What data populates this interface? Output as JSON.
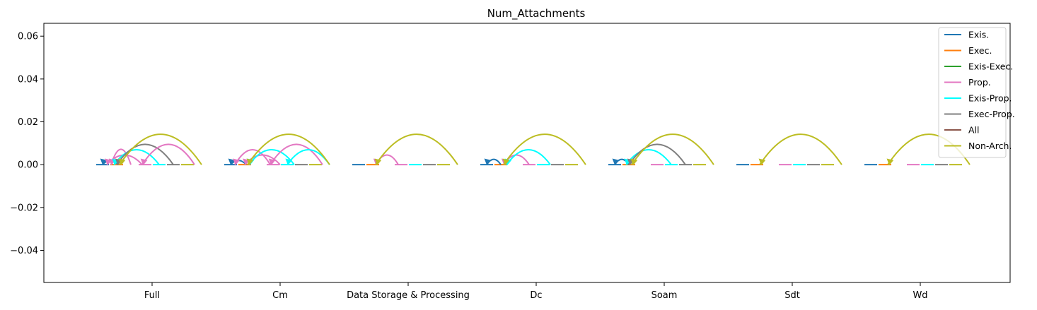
{
  "chart_data": {
    "type": "line",
    "title": "Num_Attachments",
    "xlabel": "",
    "ylabel": "",
    "categories": [
      "Full",
      "Cm",
      "Data Storage & Processing",
      "Dc",
      "Soam",
      "Sdt",
      "Wd"
    ],
    "ylim": [
      -0.055,
      0.066
    ],
    "yticks": [
      -0.04,
      -0.02,
      0.0,
      0.02,
      0.04,
      0.06
    ],
    "ytick_labels": [
      "−0.04",
      "−0.02",
      "0.00",
      "0.02",
      "0.04",
      "0.06"
    ],
    "grid": false,
    "legend_position": "top-right",
    "series": [
      {
        "name": "Exis.",
        "color": "#1f77b4"
      },
      {
        "name": "Exec.",
        "color": "#ff7f0e"
      },
      {
        "name": "Exis-Exec.",
        "color": "#2ca02c"
      },
      {
        "name": "Prop.",
        "color": "#e377c2"
      },
      {
        "name": "Exis-Prop.",
        "color": "#00ffff"
      },
      {
        "name": "Exec-Prop.",
        "color": "#7f7f7f"
      },
      {
        "name": "All",
        "color": "#8c564b"
      },
      {
        "name": "Non-Arch.",
        "color": "#bcbd22"
      }
    ],
    "segments": [
      {
        "series": [
          0,
          1,
          3,
          4,
          5,
          7
        ],
        "y": 0.0
      }
    ],
    "arcs": [
      {
        "category": 0,
        "series": 0,
        "from": 0.0,
        "to": 1.1,
        "height": 0.002
      },
      {
        "category": 0,
        "series": 3,
        "from": 0.6,
        "to": 2.0,
        "height": 0.0072
      },
      {
        "category": 0,
        "series": 3,
        "from": 0.3,
        "to": 2.8,
        "height": 0.0045
      },
      {
        "category": 0,
        "series": 4,
        "from": 0.8,
        "to": 4.0,
        "height": 0.007
      },
      {
        "category": 0,
        "series": 5,
        "from": 1.0,
        "to": 5.0,
        "height": 0.0095
      },
      {
        "category": 0,
        "series": 3,
        "from": 2.8,
        "to": 6.5,
        "height": 0.0095
      },
      {
        "category": 0,
        "series": 7,
        "from": 1.2,
        "to": 7.0,
        "height": 0.0142
      },
      {
        "category": 1,
        "series": 0,
        "from": 0.0,
        "to": 1.1,
        "height": 0.002
      },
      {
        "category": 1,
        "series": 3,
        "from": 0.3,
        "to": 2.8,
        "height": 0.007
      },
      {
        "category": 1,
        "series": 3,
        "from": 1.0,
        "to": 3.5,
        "height": 0.0045
      },
      {
        "category": 1,
        "series": 4,
        "from": 1.3,
        "to": 4.5,
        "height": 0.007
      },
      {
        "category": 1,
        "series": 3,
        "from": 2.8,
        "to": 6.5,
        "height": 0.0095
      },
      {
        "category": 1,
        "series": 4,
        "from": 4.0,
        "to": 7.0,
        "height": 0.007
      },
      {
        "category": 1,
        "series": 7,
        "from": 1.2,
        "to": 7.0,
        "height": 0.0142
      },
      {
        "category": 2,
        "series": 3,
        "from": 1.2,
        "to": 2.8,
        "height": 0.0045
      },
      {
        "category": 2,
        "series": 7,
        "from": 1.2,
        "to": 7.0,
        "height": 0.0142
      },
      {
        "category": 3,
        "series": 0,
        "from": 0.0,
        "to": 1.0,
        "height": 0.0025
      },
      {
        "category": 3,
        "series": 3,
        "from": 1.2,
        "to": 3.0,
        "height": 0.0045
      },
      {
        "category": 3,
        "series": 4,
        "from": 1.4,
        "to": 4.5,
        "height": 0.007
      },
      {
        "category": 3,
        "series": 7,
        "from": 1.2,
        "to": 7.0,
        "height": 0.0142
      },
      {
        "category": 4,
        "series": 0,
        "from": 0.0,
        "to": 1.0,
        "height": 0.0025
      },
      {
        "category": 4,
        "series": 4,
        "from": 0.8,
        "to": 4.0,
        "height": 0.007
      },
      {
        "category": 4,
        "series": 5,
        "from": 1.0,
        "to": 5.0,
        "height": 0.0095
      },
      {
        "category": 4,
        "series": 7,
        "from": 1.2,
        "to": 7.0,
        "height": 0.0142
      },
      {
        "category": 5,
        "series": 7,
        "from": 1.2,
        "to": 7.0,
        "height": 0.0142
      },
      {
        "category": 6,
        "series": 7,
        "from": 1.2,
        "to": 7.0,
        "height": 0.0142
      }
    ]
  }
}
